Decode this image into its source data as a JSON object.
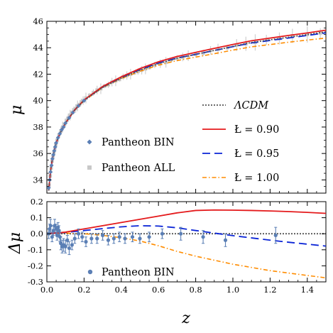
{
  "chart_data": [
    {
      "type": "line",
      "ylabel": "μ",
      "xlim": [
        0,
        1.5
      ],
      "ylim": [
        33,
        46
      ],
      "yticks": [
        34,
        36,
        38,
        40,
        42,
        44,
        46
      ],
      "grid": false,
      "legend_lines": [
        {
          "label": "ΛCDM",
          "color": "#555555",
          "style": "dotted"
        },
        {
          "label": "Ł = 0.90",
          "color": "#e41a1c",
          "style": "solid"
        },
        {
          "label": "Ł = 0.95",
          "color": "#0a24d6",
          "style": "dashed"
        },
        {
          "label": "Ł = 1.00",
          "color": "#ff8c00",
          "style": "dashdot"
        }
      ],
      "legend_points": [
        {
          "label": "Pantheon BIN",
          "color": "#5b7fb5",
          "marker": "diamond"
        },
        {
          "label": "Pantheon ALL",
          "color": "#c8c8c8",
          "marker": "square"
        }
      ],
      "curves": {
        "x": [
          0.01,
          0.02,
          0.03,
          0.05,
          0.07,
          0.1,
          0.15,
          0.2,
          0.3,
          0.4,
          0.5,
          0.6,
          0.7,
          0.8,
          0.9,
          1.0,
          1.1,
          1.2,
          1.3,
          1.4,
          1.5
        ],
        "series": [
          {
            "name": "ΛCDM",
            "values": [
              33.2,
              34.7,
              35.6,
              36.8,
              37.5,
              38.3,
              39.3,
              40.0,
              41.0,
              41.7,
              42.3,
              42.8,
              43.2,
              43.5,
              43.8,
              44.1,
              44.4,
              44.6,
              44.8,
              45.0,
              45.2
            ]
          },
          {
            "name": "Ł = 0.90",
            "values": [
              33.2,
              34.7,
              35.6,
              36.8,
              37.5,
              38.3,
              39.3,
              40.05,
              41.07,
              41.8,
              42.42,
              42.94,
              43.34,
              43.65,
              43.95,
              44.25,
              44.53,
              44.73,
              44.93,
              45.12,
              45.33
            ]
          },
          {
            "name": "Ł = 0.95",
            "values": [
              33.2,
              34.7,
              35.6,
              36.8,
              37.5,
              38.3,
              39.3,
              40.03,
              41.04,
              41.75,
              42.35,
              42.84,
              43.22,
              43.5,
              43.79,
              44.08,
              44.36,
              44.55,
              44.74,
              44.93,
              45.13
            ]
          },
          {
            "name": "Ł = 1.00",
            "values": [
              33.2,
              34.7,
              35.6,
              36.8,
              37.5,
              38.3,
              39.3,
              40.0,
              40.99,
              41.67,
              42.22,
              42.68,
              43.03,
              43.29,
              43.55,
              43.82,
              44.07,
              44.24,
              44.42,
              44.58,
              44.73
            ]
          }
        ]
      },
      "pantheon_bin": [
        [
          0.01,
          33.4
        ],
        [
          0.015,
          34.0
        ],
        [
          0.02,
          34.6
        ],
        [
          0.025,
          35.1
        ],
        [
          0.03,
          35.6
        ],
        [
          0.035,
          35.9
        ],
        [
          0.04,
          36.2
        ],
        [
          0.045,
          36.5
        ],
        [
          0.05,
          36.8
        ],
        [
          0.06,
          37.2
        ],
        [
          0.07,
          37.5
        ],
        [
          0.08,
          37.8
        ],
        [
          0.09,
          38.0
        ],
        [
          0.1,
          38.3
        ],
        [
          0.12,
          38.7
        ],
        [
          0.14,
          39.1
        ],
        [
          0.17,
          39.6
        ],
        [
          0.2,
          40.0
        ]
      ],
      "pantheon_all": [
        [
          0.012,
          33.6
        ],
        [
          0.018,
          34.3
        ],
        [
          0.023,
          34.9
        ],
        [
          0.028,
          35.4
        ],
        [
          0.033,
          35.8
        ],
        [
          0.038,
          36.1
        ],
        [
          0.043,
          36.4
        ],
        [
          0.048,
          36.7
        ],
        [
          0.055,
          37.0
        ],
        [
          0.065,
          37.4
        ],
        [
          0.075,
          37.7
        ],
        [
          0.085,
          38.0
        ],
        [
          0.095,
          38.2
        ],
        [
          0.105,
          38.5
        ],
        [
          0.115,
          38.7
        ],
        [
          0.125,
          38.9
        ],
        [
          0.135,
          39.1
        ],
        [
          0.145,
          39.3
        ],
        [
          0.155,
          39.4
        ],
        [
          0.165,
          39.6
        ],
        [
          0.175,
          39.7
        ],
        [
          0.185,
          39.9
        ],
        [
          0.195,
          40.0
        ],
        [
          0.21,
          40.2
        ],
        [
          0.23,
          40.4
        ],
        [
          0.25,
          40.6
        ],
        [
          0.27,
          40.8
        ],
        [
          0.29,
          40.9
        ],
        [
          0.31,
          41.1
        ],
        [
          0.33,
          41.2
        ],
        [
          0.35,
          41.4
        ],
        [
          0.37,
          41.5
        ],
        [
          0.39,
          41.6
        ],
        [
          0.41,
          41.8
        ],
        [
          0.43,
          41.9
        ],
        [
          0.45,
          42.0
        ],
        [
          0.47,
          42.1
        ],
        [
          0.49,
          42.2
        ],
        [
          0.51,
          42.3
        ],
        [
          0.53,
          42.4
        ],
        [
          0.55,
          42.5
        ],
        [
          0.58,
          42.7
        ],
        [
          0.61,
          42.8
        ],
        [
          0.64,
          42.9
        ],
        [
          0.67,
          43.1
        ],
        [
          0.7,
          43.2
        ],
        [
          0.73,
          43.3
        ],
        [
          0.76,
          43.4
        ],
        [
          0.8,
          43.5
        ],
        [
          0.84,
          43.6
        ],
        [
          0.88,
          43.8
        ],
        [
          0.92,
          43.9
        ],
        [
          0.97,
          44.0
        ],
        [
          1.02,
          44.2
        ],
        [
          1.07,
          44.3
        ],
        [
          1.12,
          44.4
        ],
        [
          1.18,
          44.6
        ],
        [
          1.25,
          44.7
        ],
        [
          1.32,
          44.9
        ],
        [
          1.4,
          45.0
        ],
        [
          1.47,
          45.1
        ]
      ]
    },
    {
      "type": "line",
      "xlabel": "z",
      "ylabel": "Δμ",
      "xlim": [
        0,
        1.5
      ],
      "ylim": [
        -0.3,
        0.2
      ],
      "xticks": [
        "0.0",
        "0.2",
        "0.4",
        "0.6",
        "0.8",
        "1.0",
        "1.2",
        "1.4"
      ],
      "yticks": [
        "-0.3",
        "-0.2",
        "-0.1",
        "0.0",
        "0.1",
        "0.2"
      ],
      "grid": false,
      "legend_points": [
        {
          "label": "Pantheon BIN",
          "color": "#5b7fb5",
          "marker": "circle"
        }
      ],
      "curves": {
        "x": [
          0,
          0.1,
          0.2,
          0.3,
          0.4,
          0.5,
          0.6,
          0.7,
          0.8,
          0.9,
          1.0,
          1.1,
          1.2,
          1.3,
          1.4,
          1.5
        ],
        "series": [
          {
            "name": "Ł = 0.90",
            "values": [
              0.0,
              0.01,
              0.03,
              0.05,
              0.07,
              0.09,
              0.11,
              0.13,
              0.145,
              0.148,
              0.147,
              0.145,
              0.142,
              0.138,
              0.133,
              0.127
            ]
          },
          {
            "name": "Ł = 0.95",
            "values": [
              0.0,
              0.008,
              0.02,
              0.032,
              0.043,
              0.05,
              0.048,
              0.037,
              0.02,
              0.004,
              -0.012,
              -0.026,
              -0.04,
              -0.053,
              -0.065,
              -0.077
            ]
          },
          {
            "name": "Ł = 1.00",
            "values": [
              0.0,
              0.004,
              0.0,
              -0.01,
              -0.025,
              -0.045,
              -0.075,
              -0.11,
              -0.14,
              -0.165,
              -0.19,
              -0.21,
              -0.23,
              -0.245,
              -0.26,
              -0.275
            ]
          }
        ],
        "lcdm": 0.0
      },
      "pantheon_bin": [
        {
          "x": 0.01,
          "y": 0.0,
          "err": 0.03
        },
        {
          "x": 0.015,
          "y": 0.03,
          "err": 0.03
        },
        {
          "x": 0.02,
          "y": 0.05,
          "err": 0.04
        },
        {
          "x": 0.028,
          "y": -0.02,
          "err": 0.03
        },
        {
          "x": 0.035,
          "y": 0.02,
          "err": 0.03
        },
        {
          "x": 0.042,
          "y": 0.05,
          "err": 0.04
        },
        {
          "x": 0.05,
          "y": 0.03,
          "err": 0.03
        },
        {
          "x": 0.055,
          "y": -0.01,
          "err": 0.03
        },
        {
          "x": 0.06,
          "y": 0.04,
          "err": 0.03
        },
        {
          "x": 0.065,
          "y": 0.02,
          "err": 0.03
        },
        {
          "x": 0.07,
          "y": -0.02,
          "err": 0.03
        },
        {
          "x": 0.075,
          "y": -0.06,
          "err": 0.04
        },
        {
          "x": 0.082,
          "y": -0.08,
          "err": 0.04
        },
        {
          "x": 0.09,
          "y": -0.07,
          "err": 0.04
        },
        {
          "x": 0.1,
          "y": -0.08,
          "err": 0.04
        },
        {
          "x": 0.11,
          "y": -0.04,
          "err": 0.03
        },
        {
          "x": 0.12,
          "y": -0.09,
          "err": 0.04
        },
        {
          "x": 0.135,
          "y": -0.07,
          "err": 0.03
        },
        {
          "x": 0.15,
          "y": -0.03,
          "err": 0.03
        },
        {
          "x": 0.17,
          "y": 0.0,
          "err": 0.03
        },
        {
          "x": 0.19,
          "y": -0.02,
          "err": 0.03
        },
        {
          "x": 0.21,
          "y": -0.05,
          "err": 0.03
        },
        {
          "x": 0.24,
          "y": -0.03,
          "err": 0.03
        },
        {
          "x": 0.27,
          "y": -0.03,
          "err": 0.03
        },
        {
          "x": 0.3,
          "y": -0.01,
          "err": 0.03
        },
        {
          "x": 0.33,
          "y": -0.04,
          "err": 0.03
        },
        {
          "x": 0.36,
          "y": -0.03,
          "err": 0.03
        },
        {
          "x": 0.39,
          "y": -0.02,
          "err": 0.03
        },
        {
          "x": 0.42,
          "y": -0.03,
          "err": 0.03
        },
        {
          "x": 0.46,
          "y": -0.02,
          "err": 0.03
        },
        {
          "x": 0.5,
          "y": -0.03,
          "err": 0.03
        },
        {
          "x": 0.55,
          "y": -0.02,
          "err": 0.03
        },
        {
          "x": 0.62,
          "y": 0.0,
          "err": 0.03
        },
        {
          "x": 0.72,
          "y": 0.0,
          "err": 0.04
        },
        {
          "x": 0.84,
          "y": -0.02,
          "err": 0.04
        },
        {
          "x": 0.96,
          "y": -0.04,
          "err": 0.04
        },
        {
          "x": 1.23,
          "y": -0.01,
          "err": 0.05
        }
      ]
    }
  ]
}
